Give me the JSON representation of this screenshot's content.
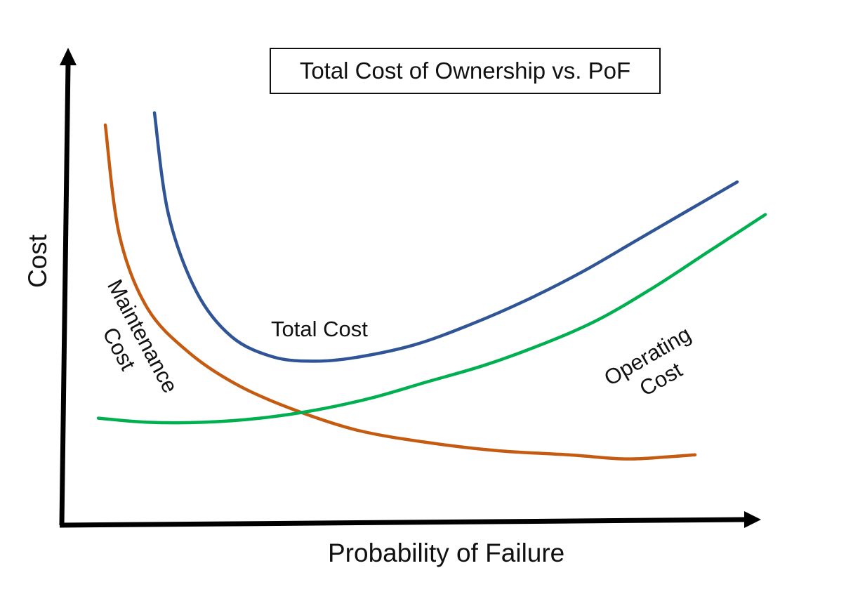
{
  "chart_data": {
    "type": "line",
    "title": "Total Cost of Ownership vs. PoF",
    "xlabel": "Probability of Failure",
    "ylabel": "Cost",
    "xlim": [
      0,
      100
    ],
    "ylim": [
      0,
      100
    ],
    "grid": false,
    "legend": "none",
    "series": [
      {
        "name": "Maintenance Cost",
        "color": "#C55A11",
        "x": [
          6,
          8,
          12,
          18,
          25,
          33,
          42,
          52,
          62,
          72,
          80,
          86,
          90
        ],
        "y": [
          90,
          63,
          45,
          34,
          26,
          20,
          15,
          12,
          10,
          9,
          8,
          8.5,
          9
        ]
      },
      {
        "name": "Total Cost",
        "color": "#2F5597",
        "x": [
          13,
          15,
          19,
          24,
          30,
          36,
          42,
          50,
          58,
          66,
          74,
          82,
          90,
          96
        ],
        "y": [
          93,
          68,
          49,
          38,
          33,
          32,
          33,
          36,
          41,
          47,
          54,
          62,
          70,
          76
        ]
      },
      {
        "name": "Operating Cost",
        "color": "#00B050",
        "x": [
          5,
          12,
          20,
          28,
          36,
          44,
          52,
          60,
          68,
          76,
          84,
          92,
          100
        ],
        "y": [
          18,
          17,
          17,
          18,
          20,
          23,
          27,
          31,
          36,
          42,
          50,
          59,
          68
        ]
      }
    ]
  },
  "labels": {
    "total_cost": "Total Cost",
    "maintenance_line1": "Maintenance",
    "maintenance_line2": "Cost",
    "operating_line1": "Operating",
    "operating_line2": "Cost"
  },
  "colors": {
    "axis": "#000000"
  }
}
